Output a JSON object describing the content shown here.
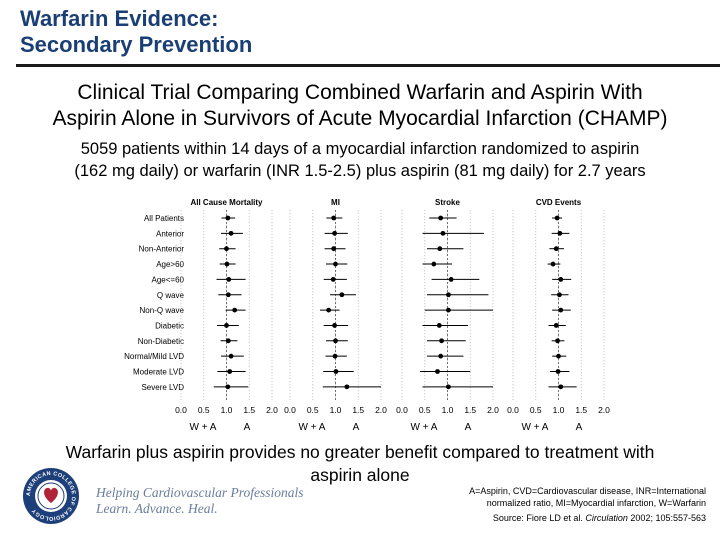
{
  "slide": {
    "title_line1": "Warfarin Evidence:",
    "title_line2": "Secondary Prevention",
    "trial_title_line1": "Clinical Trial Comparing Combined Warfarin and Aspirin With",
    "trial_title_line2": "Aspirin Alone in Survivors of Acute Myocardial Infarction (CHAMP)",
    "desc_line1": "5059 patients within 14 days of a myocardial infarction randomized to aspirin",
    "desc_line2": "(162 mg daily) or warfarin (INR 1.5-2.5) plus aspirin (81 mg daily) for 2.7 years",
    "conclusion_line1": "Warfarin plus aspirin provides no greater benefit compared to treatment with",
    "conclusion_line2": "aspirin alone",
    "tagline_line1": "Helping Cardiovascular Professionals",
    "tagline_line2": "Learn. Advance. Heal.",
    "footnote_line1": "A=Aspirin, CVD=Cardiovascular disease, INR=International",
    "footnote_line2": "normalized ratio, MI=Myocardial infarction, W=Warfarin",
    "source_prefix": "Source: Fiore LD et al. ",
    "source_journal": "Circulation",
    "source_suffix": " 2002; 105:557-563",
    "logo_text": "AMERICAN COLLEGE OF CARDIOLOGY"
  },
  "chart_data": {
    "type": "forest",
    "subgroups": [
      "All Patients",
      "Anterior",
      "Non-Anterior",
      "Age>60",
      "Age<=60",
      "Q wave",
      "Non-Q wave",
      "Diabetic",
      "Non-Diabetic",
      "Normal/Mild LVD",
      "Moderate LVD",
      "Severe LVD"
    ],
    "x_ticks": [
      "0.0",
      "0.5",
      "1.0",
      "1.5",
      "2.0"
    ],
    "xlim": [
      0,
      2
    ],
    "reference_line": 1.0,
    "favors_left": "W + A",
    "favors_right": "A",
    "panels": [
      {
        "title": "All Cause Mortality",
        "estimates": [
          1.03,
          1.1,
          1.0,
          1.01,
          1.05,
          1.04,
          1.18,
          1.0,
          1.04,
          1.1,
          1.07,
          1.03
        ],
        "ci_low": [
          0.89,
          0.88,
          0.84,
          0.85,
          0.78,
          0.82,
          0.98,
          0.79,
          0.87,
          0.88,
          0.8,
          0.72
        ],
        "ci_high": [
          1.19,
          1.36,
          1.2,
          1.2,
          1.42,
          1.33,
          1.42,
          1.27,
          1.24,
          1.38,
          1.42,
          1.48
        ]
      },
      {
        "title": "MI",
        "estimates": [
          0.96,
          0.98,
          0.96,
          1.0,
          0.95,
          1.14,
          0.85,
          0.98,
          1.0,
          0.99,
          1.01,
          1.25
        ],
        "ci_low": [
          0.8,
          0.76,
          0.76,
          0.79,
          0.74,
          0.88,
          0.66,
          0.74,
          0.79,
          0.78,
          0.73,
          0.72
        ],
        "ci_high": [
          1.15,
          1.27,
          1.22,
          1.26,
          1.25,
          1.45,
          1.09,
          1.28,
          1.27,
          1.25,
          1.4,
          2.2
        ]
      },
      {
        "title": "Stroke",
        "estimates": [
          0.85,
          0.9,
          0.83,
          0.7,
          1.08,
          1.02,
          1.02,
          0.82,
          0.87,
          0.85,
          0.78,
          1.02
        ],
        "ci_low": [
          0.6,
          0.45,
          0.55,
          0.45,
          0.65,
          0.55,
          0.5,
          0.45,
          0.55,
          0.55,
          0.4,
          0.45
        ],
        "ci_high": [
          1.2,
          1.8,
          1.35,
          1.1,
          1.7,
          1.9,
          2.0,
          1.45,
          1.4,
          1.35,
          1.5,
          2.2
        ]
      },
      {
        "title": "CVD Events",
        "estimates": [
          0.97,
          1.03,
          0.95,
          0.88,
          1.05,
          1.02,
          1.05,
          0.95,
          0.98,
          1.0,
          0.99,
          1.05
        ],
        "ci_low": [
          0.86,
          0.85,
          0.8,
          0.76,
          0.86,
          0.84,
          0.86,
          0.78,
          0.85,
          0.86,
          0.81,
          0.78
        ],
        "ci_high": [
          1.08,
          1.24,
          1.12,
          1.04,
          1.28,
          1.22,
          1.27,
          1.16,
          1.13,
          1.17,
          1.24,
          1.4
        ]
      }
    ]
  }
}
